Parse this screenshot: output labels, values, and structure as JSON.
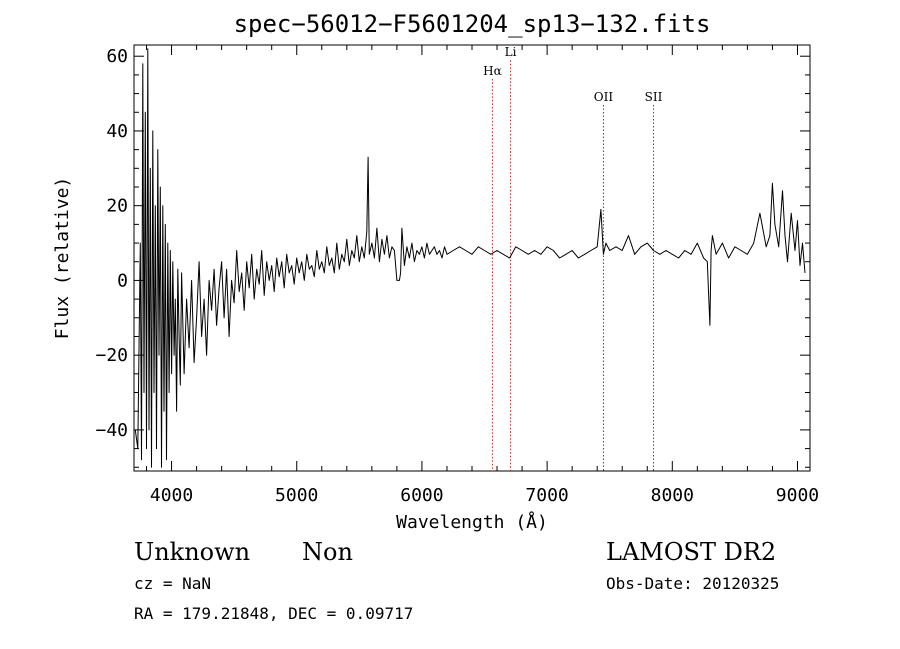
{
  "chart_data": {
    "type": "line",
    "title": "spec−56012−F5601204_sp13−132.fits",
    "xlabel": "Wavelength (Å)",
    "ylabel": "Flux (relative)",
    "xlim": [
      3700,
      9100
    ],
    "ylim": [
      -51,
      63
    ],
    "xticks": [
      4000,
      5000,
      6000,
      7000,
      8000,
      9000
    ],
    "xtick_labels": [
      "4000",
      "5000",
      "6000",
      "7000",
      "8000",
      "9000"
    ],
    "yticks": [
      -40,
      -20,
      0,
      20,
      40,
      60
    ],
    "ytick_labels": [
      "−40",
      "−20",
      "0",
      "20",
      "40",
      "60"
    ],
    "grid": false,
    "lines": [
      {
        "name": "Hα",
        "x": 6563,
        "label_y": 55
      },
      {
        "name": "Li",
        "x": 6708,
        "label_y": 60
      },
      {
        "name": "OII",
        "x": 7450,
        "label_y": 48
      },
      {
        "name": "SII",
        "x": 7850,
        "label_y": 48
      }
    ],
    "series": [
      {
        "line_color": "#000000",
        "x": [
          3710,
          3730,
          3750,
          3760,
          3770,
          3780,
          3790,
          3800,
          3810,
          3820,
          3830,
          3840,
          3850,
          3860,
          3870,
          3880,
          3890,
          3900,
          3910,
          3920,
          3930,
          3940,
          3950,
          3960,
          3970,
          3980,
          3990,
          4000,
          4010,
          4020,
          4030,
          4040,
          4050,
          4060,
          4070,
          4080,
          4100,
          4120,
          4140,
          4160,
          4180,
          4200,
          4220,
          4240,
          4260,
          4280,
          4300,
          4320,
          4340,
          4360,
          4380,
          4400,
          4420,
          4440,
          4460,
          4480,
          4500,
          4520,
          4540,
          4560,
          4580,
          4600,
          4620,
          4640,
          4660,
          4680,
          4700,
          4720,
          4740,
          4760,
          4780,
          4800,
          4820,
          4840,
          4860,
          4880,
          4900,
          4920,
          4940,
          4960,
          4980,
          5000,
          5020,
          5040,
          5060,
          5080,
          5100,
          5120,
          5140,
          5160,
          5180,
          5200,
          5220,
          5240,
          5260,
          5280,
          5300,
          5320,
          5340,
          5360,
          5380,
          5400,
          5420,
          5440,
          5460,
          5480,
          5500,
          5520,
          5540,
          5560,
          5570,
          5580,
          5600,
          5620,
          5640,
          5660,
          5680,
          5700,
          5720,
          5740,
          5760,
          5780,
          5800,
          5820,
          5830,
          5840,
          5860,
          5880,
          5900,
          5920,
          5940,
          5960,
          5980,
          6000,
          6020,
          6040,
          6060,
          6080,
          6100,
          6120,
          6140,
          6160,
          6180,
          6200,
          6250,
          6300,
          6350,
          6400,
          6450,
          6500,
          6550,
          6600,
          6650,
          6700,
          6750,
          6800,
          6850,
          6900,
          6950,
          7000,
          7050,
          7100,
          7150,
          7200,
          7250,
          7300,
          7350,
          7400,
          7430,
          7450,
          7470,
          7500,
          7550,
          7600,
          7650,
          7700,
          7750,
          7800,
          7850,
          7900,
          7950,
          8000,
          8050,
          8100,
          8150,
          8200,
          8250,
          8280,
          8300,
          8310,
          8320,
          8350,
          8400,
          8450,
          8500,
          8550,
          8600,
          8650,
          8700,
          8750,
          8780,
          8800,
          8820,
          8850,
          8880,
          8900,
          8920,
          8950,
          8980,
          9000,
          9020,
          9040,
          9060
        ],
        "y": [
          -40,
          -45,
          10,
          -48,
          58,
          -30,
          45,
          -45,
          62,
          -40,
          30,
          -50,
          40,
          -30,
          20,
          -45,
          35,
          -20,
          25,
          -50,
          20,
          -35,
          15,
          -48,
          10,
          -30,
          8,
          -25,
          5,
          -20,
          -5,
          -35,
          3,
          -15,
          -28,
          2,
          -25,
          -5,
          -18,
          0,
          -22,
          -10,
          5,
          -15,
          -5,
          -20,
          0,
          -8,
          3,
          -12,
          -2,
          5,
          -10,
          3,
          -15,
          0,
          -6,
          8,
          -3,
          2,
          -8,
          5,
          -2,
          7,
          -5,
          3,
          -1,
          8,
          -4,
          5,
          0,
          4,
          -3,
          6,
          1,
          5,
          -2,
          7,
          2,
          4,
          -1,
          6,
          2,
          5,
          0,
          7,
          3,
          4,
          1,
          8,
          3,
          5,
          2,
          9,
          4,
          6,
          2,
          10,
          3,
          7,
          5,
          11,
          4,
          8,
          6,
          12,
          5,
          9,
          6,
          13,
          33,
          7,
          10,
          6,
          14,
          5,
          11,
          7,
          12,
          6,
          9,
          8,
          0,
          0,
          2,
          14,
          4,
          9,
          6,
          10,
          5,
          8,
          7,
          9,
          6,
          10,
          7,
          8,
          9,
          7,
          8,
          6,
          9,
          7,
          8,
          9,
          8,
          7,
          9,
          8,
          7,
          8,
          7,
          6,
          9,
          8,
          7,
          8,
          7,
          9,
          8,
          6,
          7,
          8,
          6,
          7,
          8,
          9,
          19,
          7,
          10,
          8,
          9,
          8,
          12,
          7,
          9,
          10,
          8,
          7,
          8,
          7,
          6,
          8,
          7,
          10,
          6,
          5,
          -12,
          8,
          12,
          7,
          10,
          6,
          9,
          8,
          7,
          10,
          18,
          9,
          12,
          26,
          15,
          9,
          24,
          12,
          5,
          18,
          8,
          16,
          4,
          10,
          2
        ]
      }
    ]
  },
  "info": {
    "object_class": "Unknown",
    "subclass": "Non",
    "survey": "LAMOST DR2",
    "redshift": "cz = NaN",
    "obs_date": "Obs-Date: 20120325",
    "coords": "RA = 179.21848, DEC =    0.09717"
  }
}
